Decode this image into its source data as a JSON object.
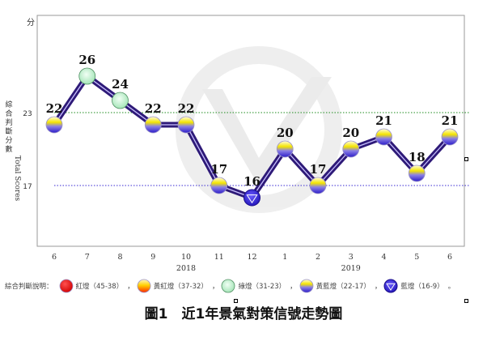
{
  "chart_data": {
    "type": "line",
    "title": "圖1　近1年景氣對策信號走勢圖",
    "y_unit": "分",
    "ylabel_zh": "綜合判斷分數",
    "ylabel_en": "Total Scores",
    "ylim": [
      12,
      31
    ],
    "reference_lines": [
      {
        "value": 23,
        "label": "23",
        "color": "#1e8c1e"
      },
      {
        "value": 17,
        "label": "17",
        "color": "#3a2ad1"
      }
    ],
    "categories": [
      "6",
      "7",
      "8",
      "9",
      "10",
      "11",
      "12",
      "1",
      "2",
      "3",
      "4",
      "5",
      "6"
    ],
    "year_labels": [
      {
        "label": "2018",
        "at": "10"
      },
      {
        "label": "2019",
        "at": "3"
      }
    ],
    "series": [
      {
        "values": [
          22,
          26,
          24,
          22,
          22,
          17,
          16,
          20,
          17,
          20,
          21,
          18,
          21
        ],
        "signals": [
          "yellow-blue",
          "green",
          "green",
          "yellow-blue",
          "yellow-blue",
          "yellow-blue",
          "blue",
          "yellow-blue",
          "yellow-blue",
          "yellow-blue",
          "yellow-blue",
          "yellow-blue",
          "yellow-blue"
        ]
      }
    ],
    "legend": {
      "lead": "綜合判斷說明：",
      "items": [
        {
          "signal": "red",
          "label": "紅燈（45-38）"
        },
        {
          "signal": "yellow-red",
          "label": "黃紅燈（37-32）"
        },
        {
          "signal": "green",
          "label": "綠燈（31-23）"
        },
        {
          "signal": "yellow-blue",
          "label": "黃藍燈（22-17）"
        },
        {
          "signal": "blue",
          "label": "藍燈（16-9）"
        }
      ]
    },
    "colors": {
      "line": "#2e1a78",
      "line_highlight": "#c9c1ff",
      "frame": "#9a9a9a",
      "red": "#e60000",
      "yellow": "#f5e600",
      "green": "#bfeecc",
      "blue": "#2a1ad1"
    }
  }
}
